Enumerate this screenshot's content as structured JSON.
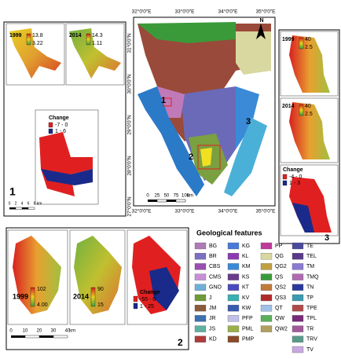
{
  "panel1": {
    "label": "1",
    "maps": [
      {
        "year": "1999",
        "max": "13.8",
        "min": "3.22"
      },
      {
        "year": "2014",
        "max": "14.3",
        "min": "1.11"
      }
    ],
    "change": {
      "title": "Change",
      "classes": [
        "-7 - 0",
        "1 - 6"
      ]
    },
    "scale": [
      "0",
      "2",
      "4",
      "6",
      "8",
      "km"
    ]
  },
  "main_map": {
    "top_labels": [
      "32°0'0\"E",
      "33°0'0\"E",
      "34°0'0\"E",
      "35°0'0\"E"
    ],
    "bottom_labels": [
      "32°0'0\"E",
      "33°0'0\"E",
      "34°0'0\"E",
      "35°0'0\"E"
    ],
    "left_labels": [
      "31°0'0\"N",
      "30°0'0\"N",
      "29°0'0\"N",
      "28°0'0\"N",
      "27°0'0\"N"
    ],
    "north": "N",
    "site_labels": [
      "1",
      "2",
      "3"
    ],
    "scale": [
      "0",
      "25",
      "50",
      "75",
      "100",
      "km"
    ]
  },
  "panel3": {
    "label": "3",
    "maps": [
      {
        "year": "1999",
        "max": "40",
        "min": "2.5"
      },
      {
        "year": "2014",
        "max": "40",
        "min": "2.5"
      }
    ],
    "change": {
      "title": "Change",
      "classes": [
        "-4 - 0",
        "1 - 3"
      ]
    }
  },
  "panel2": {
    "label": "2",
    "maps": [
      {
        "year": "1999",
        "max": "102",
        "min": "4.00"
      },
      {
        "year": "2014",
        "max": "90",
        "min": "15"
      }
    ],
    "change": {
      "title": "Change",
      "classes": [
        "-55 - 0",
        "1 - 25"
      ]
    },
    "scale": [
      "0",
      "10",
      "20",
      "30",
      "40",
      "km"
    ]
  },
  "legend": {
    "title": "Geological features",
    "items": [
      {
        "code": "BG",
        "color": "#b07ab8"
      },
      {
        "code": "BR",
        "color": "#7a6fc0"
      },
      {
        "code": "CBS",
        "color": "#9a4fb0"
      },
      {
        "code": "CMS",
        "color": "#c88fd8"
      },
      {
        "code": "GNO",
        "color": "#6fb0d8"
      },
      {
        "code": "J",
        "color": "#6f9a3a"
      },
      {
        "code": "JM",
        "color": "#8a5a3a"
      },
      {
        "code": "JR",
        "color": "#3a6fb0"
      },
      {
        "code": "JS",
        "color": "#5fb0a0"
      },
      {
        "code": "KD",
        "color": "#b03a3a"
      },
      {
        "code": "KG",
        "color": "#4a7ad8"
      },
      {
        "code": "KL",
        "color": "#8a3ab0"
      },
      {
        "code": "KM",
        "color": "#3a8ad8"
      },
      {
        "code": "KS",
        "color": "#6a3a8a"
      },
      {
        "code": "KT",
        "color": "#4a4ac0"
      },
      {
        "code": "KV",
        "color": "#3ab0b0"
      },
      {
        "code": "KW",
        "color": "#3a5ab0"
      },
      {
        "code": "PFP",
        "color": "#c0c0e8"
      },
      {
        "code": "PML",
        "color": "#9ab04a"
      },
      {
        "code": "PMP",
        "color": "#8a4a2a"
      },
      {
        "code": "PP",
        "color": "#c03a9a"
      },
      {
        "code": "QG",
        "color": "#d8d8a0"
      },
      {
        "code": "QG2",
        "color": "#c0a040"
      },
      {
        "code": "QS",
        "color": "#3a9a3a"
      },
      {
        "code": "QS2",
        "color": "#c07a3a"
      },
      {
        "code": "QS3",
        "color": "#b02a2a"
      },
      {
        "code": "QT",
        "color": "#a0c0e8"
      },
      {
        "code": "QW",
        "color": "#5ab05a"
      },
      {
        "code": "QW2",
        "color": "#b0a060"
      },
      {
        "code": "TE",
        "color": "#4a4a9a"
      },
      {
        "code": "TEL",
        "color": "#5a3a8a"
      },
      {
        "code": "TM",
        "color": "#8a7ad0"
      },
      {
        "code": "TMQ",
        "color": "#b06ab0"
      },
      {
        "code": "TN",
        "color": "#2a3a9a"
      },
      {
        "code": "TP",
        "color": "#3a9ab0"
      },
      {
        "code": "TPE",
        "color": "#b04a4a"
      },
      {
        "code": "TPL",
        "color": "#7a2a7a"
      },
      {
        "code": "TR",
        "color": "#a05a9a"
      },
      {
        "code": "TRV",
        "color": "#5a9a8a"
      },
      {
        "code": "TV",
        "color": "#c8a8e0"
      }
    ]
  }
}
